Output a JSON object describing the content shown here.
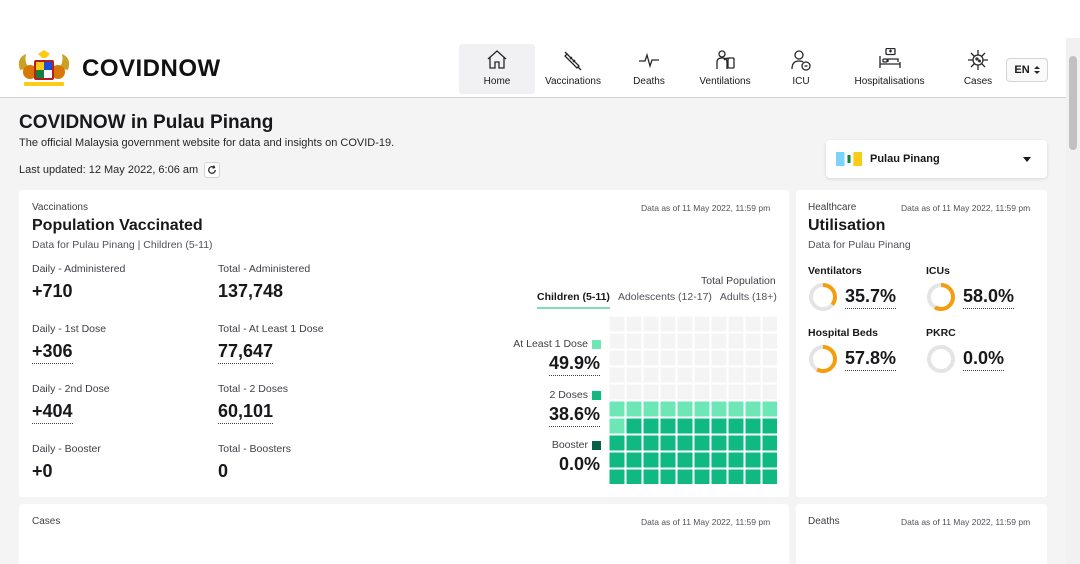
{
  "header": {
    "brand": "COVIDNOW",
    "nav": [
      {
        "label": "Home",
        "icon": "home-icon",
        "active": true
      },
      {
        "label": "Vaccinations",
        "icon": "syringe-icon"
      },
      {
        "label": "Deaths",
        "icon": "heartbeat-icon"
      },
      {
        "label": "Ventilations",
        "icon": "ventilator-icon"
      },
      {
        "label": "ICU",
        "icon": "icu-icon"
      },
      {
        "label": "Hospitalisations",
        "icon": "hospital-bed-icon"
      },
      {
        "label": "Cases",
        "icon": "virus-icon"
      }
    ],
    "language": "EN"
  },
  "page": {
    "title": "COVIDNOW in Pulau Pinang",
    "description": "The official Malaysia government website for data and insights on COVID-19.",
    "last_updated": "Last updated: 12 May 2022, 6:06 am"
  },
  "state_select": {
    "value": "Pulau Pinang"
  },
  "vaccinations": {
    "eyebrow": "Vaccinations",
    "as_of": "Data as of 11 May 2022, 11:59 pm",
    "title": "Population Vaccinated",
    "subtitle": "Data for Pulau Pinang | Children (5-11)",
    "stats": [
      {
        "label": "Daily - Administered",
        "value": "+710"
      },
      {
        "label": "Total - Administered",
        "value": "137,748"
      },
      {
        "label": "Daily - 1st Dose",
        "value": "+306"
      },
      {
        "label": "Total - At Least 1 Dose",
        "value": "77,647"
      },
      {
        "label": "Daily - 2nd Dose",
        "value": "+404"
      },
      {
        "label": "Total - 2 Doses",
        "value": "60,101"
      },
      {
        "label": "Daily - Booster",
        "value": "+0"
      },
      {
        "label": "Total - Boosters",
        "value": "0"
      }
    ],
    "total_population_label": "Total Population",
    "tabs": [
      "Children (5-11)",
      "Adolescents (12-17)",
      "Adults (18+)"
    ],
    "legend": [
      {
        "label": "At Least 1 Dose",
        "value": "49.9%",
        "color": "#6ee7b7"
      },
      {
        "label": "2 Doses",
        "value": "38.6%",
        "color": "#10b981"
      },
      {
        "label": "Booster",
        "value": "0.0%",
        "color": "#065f46"
      }
    ],
    "waffle": {
      "at_least_1_dose_pct": 49.9,
      "two_doses_pct": 38.6,
      "booster_pct": 0.0
    }
  },
  "utilisation": {
    "eyebrow": "Healthcare",
    "as_of": "Data as of 11 May 2022, 11:59 pm",
    "title": "Utilisation",
    "subtitle": "Data for Pulau Pinang",
    "items": [
      {
        "label": "Ventilators",
        "value": "35.7%",
        "pct": 35.7
      },
      {
        "label": "ICUs",
        "value": "58.0%",
        "pct": 58.0
      },
      {
        "label": "Hospital Beds",
        "value": "57.8%",
        "pct": 57.8
      },
      {
        "label": "PKRC",
        "value": "0.0%",
        "pct": 0.0
      }
    ],
    "ring_color": "#f59e0b"
  },
  "cases": {
    "eyebrow": "Cases",
    "as_of": "Data as of 11 May 2022, 11:59 pm"
  },
  "deaths": {
    "eyebrow": "Deaths",
    "as_of": "Data as of 11 May 2022, 11:59 pm"
  }
}
